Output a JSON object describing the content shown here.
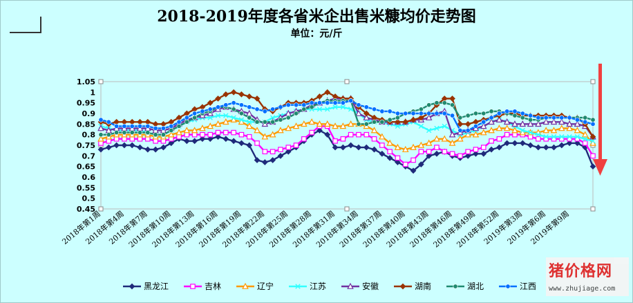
{
  "chart_data": {
    "type": "line",
    "title": "2018-2019年度各省米企出售米糠均价走势图",
    "subtitle": "单位：元/斤",
    "ylim": [
      0.45,
      1.05
    ],
    "yticks": [
      "1.05",
      "1",
      "0.95",
      "0.9",
      "0.85",
      "0.8",
      "0.75",
      "0.7",
      "0.65",
      "0.6",
      "0.55",
      "0.5",
      "0.45"
    ],
    "categories": [
      "2018年第1周",
      "2018年第2周",
      "2018年第3周",
      "2018年第4周",
      "2018年第5周",
      "2018年第6周",
      "2018年第7周",
      "2018年第8周",
      "2018年第9周",
      "2018年第10周",
      "2018年第11周",
      "2018年第12周",
      "2018年第13周",
      "2018年第14周",
      "2018年第15周",
      "2018年第16周",
      "2018年第17周",
      "2018年第18周",
      "2018年第19周",
      "2018年第20周",
      "2018年第21周",
      "2018年第22周",
      "2018年第23周",
      "2018年第24周",
      "2018年第25周",
      "2018年第26周",
      "2018年第27周",
      "2018年第28周",
      "2018年第29周",
      "2018年第30周",
      "2018年第31周",
      "2018年第32周",
      "2018年第33周",
      "2018年第34周",
      "2018年第35周",
      "2018年第36周",
      "2018年第37周",
      "2018年第38周",
      "2018年第39周",
      "2018年第40周",
      "2018年第41周",
      "2018年第42周",
      "2018年第43周",
      "2018年第44周",
      "2018年第45周",
      "2018年第46周",
      "2018年第47周",
      "2018年第48周",
      "2018年第49周",
      "2018年第50周",
      "2018年第51周",
      "2018年第52周",
      "2019年第1周",
      "2019年第2周",
      "2019年第3周",
      "2019年第4周",
      "2019年第5周",
      "2019年第6周",
      "2019年第7周",
      "2019年第8周",
      "2019年第9周",
      "2019年第10周",
      "2019年第11周",
      "2019年第12周"
    ],
    "tick_labels": [
      "2018年第1周",
      "2018年第4周",
      "2018年第7周",
      "2018年第10周",
      "2018年第13周",
      "2018年第16周",
      "2018年第19周",
      "2018年第22周",
      "2018年第25周",
      "2018年第28周",
      "2018年第31周",
      "2018年第34周",
      "2018年第37周",
      "2018年第40周",
      "2018年第43周",
      "2018年第46周",
      "2018年第49周",
      "2018年第52周",
      "2019年第3周",
      "2019年第6周",
      "2019年第9周"
    ],
    "series": [
      {
        "name": "黑龙江",
        "color": "#1f2a7a",
        "marker": "diamond",
        "values": [
          0.73,
          0.74,
          0.75,
          0.75,
          0.75,
          0.74,
          0.73,
          0.73,
          0.74,
          0.76,
          0.78,
          0.77,
          0.77,
          0.78,
          0.78,
          0.79,
          0.78,
          0.77,
          0.76,
          0.75,
          0.68,
          0.67,
          0.68,
          0.7,
          0.72,
          0.74,
          0.77,
          0.8,
          0.82,
          0.8,
          0.74,
          0.74,
          0.75,
          0.74,
          0.74,
          0.73,
          0.71,
          0.69,
          0.67,
          0.65,
          0.63,
          0.66,
          0.7,
          0.71,
          0.72,
          0.7,
          0.69,
          0.7,
          0.71,
          0.71,
          0.73,
          0.74,
          0.76,
          0.76,
          0.76,
          0.75,
          0.74,
          0.74,
          0.74,
          0.75,
          0.76,
          0.76,
          0.74,
          0.65
        ]
      },
      {
        "name": "吉林",
        "color": "#ff00ff",
        "marker": "square",
        "values": [
          0.76,
          0.77,
          0.78,
          0.78,
          0.78,
          0.78,
          0.78,
          0.77,
          0.77,
          0.78,
          0.79,
          0.8,
          0.8,
          0.8,
          0.8,
          0.81,
          0.81,
          0.81,
          0.8,
          0.79,
          0.76,
          0.72,
          0.72,
          0.73,
          0.74,
          0.75,
          0.78,
          0.81,
          0.84,
          0.84,
          0.77,
          0.78,
          0.8,
          0.8,
          0.8,
          0.78,
          0.75,
          0.72,
          0.69,
          0.66,
          0.68,
          0.72,
          0.72,
          0.74,
          0.72,
          0.71,
          0.7,
          0.72,
          0.73,
          0.74,
          0.77,
          0.78,
          0.8,
          0.8,
          0.8,
          0.79,
          0.78,
          0.78,
          0.78,
          0.78,
          0.78,
          0.78,
          0.76,
          0.7
        ]
      },
      {
        "name": "辽宁",
        "color": "#ff9900",
        "marker": "triangle",
        "values": [
          0.78,
          0.79,
          0.8,
          0.8,
          0.8,
          0.8,
          0.8,
          0.79,
          0.79,
          0.8,
          0.81,
          0.82,
          0.82,
          0.83,
          0.84,
          0.85,
          0.86,
          0.87,
          0.86,
          0.84,
          0.82,
          0.79,
          0.8,
          0.82,
          0.83,
          0.84,
          0.85,
          0.86,
          0.85,
          0.85,
          0.84,
          0.84,
          0.85,
          0.85,
          0.84,
          0.82,
          0.79,
          0.76,
          0.74,
          0.73,
          0.74,
          0.75,
          0.76,
          0.78,
          0.78,
          0.76,
          0.78,
          0.8,
          0.8,
          0.81,
          0.82,
          0.83,
          0.83,
          0.82,
          0.81,
          0.81,
          0.81,
          0.82,
          0.82,
          0.83,
          0.83,
          0.82,
          0.8,
          0.76
        ]
      },
      {
        "name": "江苏",
        "color": "#33ffff",
        "marker": "x",
        "values": [
          0.84,
          0.83,
          0.82,
          0.82,
          0.82,
          0.82,
          0.81,
          0.8,
          0.8,
          0.82,
          0.84,
          0.86,
          0.87,
          0.88,
          0.88,
          0.89,
          0.89,
          0.88,
          0.87,
          0.86,
          0.86,
          0.86,
          0.88,
          0.89,
          0.9,
          0.91,
          0.92,
          0.92,
          0.92,
          0.92,
          0.93,
          0.93,
          0.92,
          0.9,
          0.87,
          0.86,
          0.86,
          0.85,
          0.84,
          0.85,
          0.86,
          0.84,
          0.82,
          0.83,
          0.84,
          0.82,
          0.8,
          0.81,
          0.82,
          0.84,
          0.86,
          0.87,
          0.86,
          0.84,
          0.82,
          0.81,
          0.8,
          0.79,
          0.79,
          0.79,
          0.79,
          0.79,
          0.78,
          0.77
        ]
      },
      {
        "name": "安徽",
        "color": "#7030a0",
        "marker": "triangle",
        "values": [
          0.83,
          0.82,
          0.83,
          0.83,
          0.83,
          0.83,
          0.83,
          0.82,
          0.82,
          0.83,
          0.85,
          0.87,
          0.88,
          0.89,
          0.9,
          0.92,
          0.93,
          0.92,
          0.91,
          0.9,
          0.87,
          0.85,
          0.86,
          0.88,
          0.9,
          0.91,
          0.92,
          0.94,
          0.95,
          0.96,
          0.97,
          0.97,
          0.97,
          0.9,
          0.88,
          0.87,
          0.86,
          0.86,
          0.86,
          0.86,
          0.87,
          0.87,
          0.88,
          0.9,
          0.91,
          0.8,
          0.81,
          0.82,
          0.83,
          0.84,
          0.86,
          0.87,
          0.86,
          0.85,
          0.85,
          0.85,
          0.85,
          0.86,
          0.86,
          0.86,
          0.85,
          0.85,
          0.84,
          0.79
        ]
      },
      {
        "name": "湖南",
        "color": "#993300",
        "marker": "diamond",
        "values": [
          0.86,
          0.85,
          0.86,
          0.86,
          0.86,
          0.86,
          0.86,
          0.85,
          0.85,
          0.86,
          0.88,
          0.9,
          0.92,
          0.93,
          0.95,
          0.97,
          0.99,
          1.0,
          0.99,
          0.98,
          0.97,
          0.92,
          0.91,
          0.93,
          0.95,
          0.95,
          0.95,
          0.96,
          0.98,
          1.0,
          0.98,
          0.97,
          0.97,
          0.93,
          0.9,
          0.88,
          0.87,
          0.86,
          0.86,
          0.86,
          0.87,
          0.88,
          0.9,
          0.94,
          0.97,
          0.97,
          0.85,
          0.85,
          0.86,
          0.87,
          0.88,
          0.89,
          0.9,
          0.9,
          0.89,
          0.89,
          0.89,
          0.89,
          0.89,
          0.89,
          0.88,
          0.88,
          0.85,
          0.79
        ]
      },
      {
        "name": "湖北",
        "color": "#1f8a70",
        "marker": "circle",
        "values": [
          0.8,
          0.8,
          0.81,
          0.81,
          0.81,
          0.81,
          0.81,
          0.8,
          0.8,
          0.82,
          0.84,
          0.86,
          0.88,
          0.9,
          0.91,
          0.93,
          0.93,
          0.92,
          0.9,
          0.88,
          0.86,
          0.86,
          0.86,
          0.87,
          0.88,
          0.9,
          0.92,
          0.93,
          0.95,
          0.96,
          0.96,
          0.96,
          0.96,
          0.85,
          0.85,
          0.86,
          0.86,
          0.87,
          0.88,
          0.9,
          0.91,
          0.92,
          0.94,
          0.95,
          0.95,
          0.94,
          0.88,
          0.89,
          0.9,
          0.9,
          0.91,
          0.91,
          0.9,
          0.89,
          0.88,
          0.87,
          0.87,
          0.88,
          0.88,
          0.88,
          0.88,
          0.88,
          0.88,
          0.87
        ]
      },
      {
        "name": "江西",
        "color": "#0070ff",
        "marker": "circle",
        "values": [
          0.87,
          0.86,
          0.84,
          0.84,
          0.84,
          0.84,
          0.84,
          0.83,
          0.83,
          0.84,
          0.86,
          0.88,
          0.9,
          0.91,
          0.92,
          0.93,
          0.94,
          0.95,
          0.94,
          0.93,
          0.92,
          0.91,
          0.92,
          0.93,
          0.94,
          0.94,
          0.94,
          0.95,
          0.95,
          0.95,
          0.95,
          0.95,
          0.96,
          0.94,
          0.93,
          0.92,
          0.91,
          0.91,
          0.9,
          0.9,
          0.9,
          0.9,
          0.9,
          0.9,
          0.9,
          0.89,
          0.82,
          0.82,
          0.84,
          0.86,
          0.88,
          0.9,
          0.91,
          0.91,
          0.9,
          0.89,
          0.88,
          0.88,
          0.88,
          0.88,
          0.88,
          0.87,
          0.86,
          0.85
        ]
      }
    ],
    "legend_position": "bottom",
    "grid": false
  },
  "watermark": {
    "brand": "猪价格网",
    "url": "www.zhujiage.com"
  }
}
